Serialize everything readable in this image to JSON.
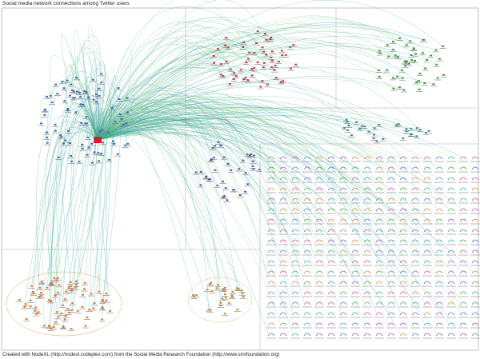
{
  "header": {
    "title": "Social media network connections among Twitter users"
  },
  "footer": {
    "credit": "Created with NodeXL (http://nodexl.codeplex.com) from the Social Media Research Foundation (http://www.smrfoundation.org)"
  }
}
